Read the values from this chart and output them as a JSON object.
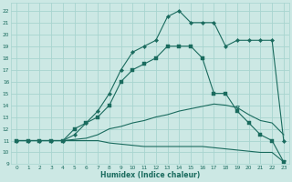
{
  "xlabel": "Humidex (Indice chaleur)",
  "background_color": "#cce8e4",
  "grid_color": "#a8d4cf",
  "line_color": "#1a6b5e",
  "xlim": [
    -0.5,
    23.5
  ],
  "ylim": [
    9,
    22.7
  ],
  "xticks": [
    0,
    1,
    2,
    3,
    4,
    5,
    6,
    7,
    8,
    9,
    10,
    11,
    12,
    13,
    14,
    15,
    16,
    17,
    18,
    19,
    20,
    21,
    22,
    23
  ],
  "yticks": [
    9,
    10,
    11,
    12,
    13,
    14,
    15,
    16,
    17,
    18,
    19,
    20,
    21,
    22
  ],
  "line_peak_x": [
    0,
    1,
    2,
    3,
    4,
    5,
    6,
    7,
    8,
    9,
    10,
    11,
    12,
    13,
    14,
    15,
    16,
    17,
    18,
    19,
    20,
    21,
    22,
    23
  ],
  "line_peak_y": [
    11,
    11,
    11,
    11,
    11,
    11.5,
    12.5,
    13.5,
    15,
    17,
    18.5,
    19,
    19.5,
    21.5,
    22,
    21,
    21,
    21,
    19,
    19.5,
    19.5,
    19.5,
    19.5,
    11
  ],
  "line_mid_x": [
    0,
    1,
    2,
    3,
    4,
    5,
    6,
    7,
    8,
    9,
    10,
    11,
    12,
    13,
    14,
    15,
    16,
    17,
    18,
    19,
    20,
    21,
    22,
    23
  ],
  "line_mid_y": [
    11,
    11,
    11,
    11,
    11,
    12,
    12.5,
    13,
    14,
    16,
    17,
    17.5,
    18,
    19,
    19,
    19,
    18,
    15,
    15,
    13.5,
    12.5,
    11.5,
    11,
    9.2
  ],
  "line_upper_x": [
    0,
    1,
    2,
    3,
    4,
    5,
    6,
    7,
    8,
    9,
    10,
    11,
    12,
    13,
    14,
    15,
    16,
    17,
    18,
    19,
    20,
    21,
    22,
    23
  ],
  "line_upper_y": [
    11,
    11,
    11,
    11,
    11,
    11.1,
    11.2,
    11.5,
    12,
    12.2,
    12.5,
    12.7,
    13,
    13.2,
    13.5,
    13.7,
    13.9,
    14.1,
    14.0,
    13.8,
    13.2,
    12.7,
    12.5,
    11.5
  ],
  "line_lower_x": [
    0,
    1,
    2,
    3,
    4,
    5,
    6,
    7,
    8,
    9,
    10,
    11,
    12,
    13,
    14,
    15,
    16,
    17,
    18,
    19,
    20,
    21,
    22,
    23
  ],
  "line_lower_y": [
    11,
    11,
    11,
    11,
    11,
    11,
    11,
    11,
    10.8,
    10.7,
    10.6,
    10.5,
    10.5,
    10.5,
    10.5,
    10.5,
    10.5,
    10.4,
    10.3,
    10.2,
    10.1,
    10.0,
    10.0,
    9.2
  ]
}
